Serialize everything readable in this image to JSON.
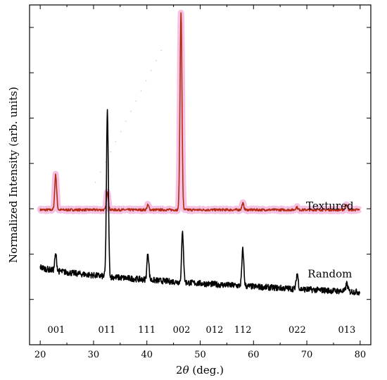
{
  "chart_data": {
    "type": "line",
    "title": "",
    "xlabel": "2θ (deg.)",
    "xlabel_main": "2",
    "xlabel_symbol": "θ",
    "xlabel_unit": " (deg.)",
    "ylabel": "Normalized Intensity (arb. units)",
    "xlim": [
      18,
      82
    ],
    "ylim": [
      0,
      100
    ],
    "x_ticks": [
      20,
      30,
      40,
      50,
      60,
      70,
      80
    ],
    "y_tick_labels": "none",
    "grid": false,
    "legend": "none",
    "series_labels": [
      {
        "text": "Textured",
        "x": 73,
        "y": 39
      },
      {
        "text": "Random",
        "x": 73,
        "y": 19
      }
    ],
    "peak_labels": [
      {
        "text": "001",
        "x": 23
      },
      {
        "text": "011",
        "x": 32.5
      },
      {
        "text": "111",
        "x": 40
      },
      {
        "text": "002",
        "x": 46.5
      },
      {
        "text": "012",
        "x": 52.7
      },
      {
        "text": "112",
        "x": 58
      },
      {
        "text": "022",
        "x": 68.2
      },
      {
        "text": "013",
        "x": 77.5
      }
    ],
    "series": [
      {
        "color": "#b22c12",
        "band_color": "#f4b3dc",
        "baseline": 39.7,
        "slope": 0,
        "noise": 0.35,
        "peaks": [
          {
            "x": 22.9,
            "y": 50
          },
          {
            "x": 32.6,
            "y": 45
          },
          {
            "x": 40.2,
            "y": 41.1
          },
          {
            "x": 46.4,
            "y": 98
          },
          {
            "x": 58.0,
            "y": 41.6
          },
          {
            "x": 68.1,
            "y": 40.5
          },
          {
            "x": 77.4,
            "y": 41.5
          }
        ]
      },
      {
        "color": "#000000",
        "baseline_start": 23,
        "baseline_end": 15.5,
        "noise": 0.9,
        "peaks": [
          {
            "x": 22.9,
            "y": 26.5
          },
          {
            "x": 32.6,
            "y": 68.5
          },
          {
            "x": 40.2,
            "y": 27
          },
          {
            "x": 46.7,
            "y": 33
          },
          {
            "x": 58.0,
            "y": 28
          },
          {
            "x": 68.2,
            "y": 21
          },
          {
            "x": 77.5,
            "y": 18
          }
        ]
      }
    ]
  }
}
